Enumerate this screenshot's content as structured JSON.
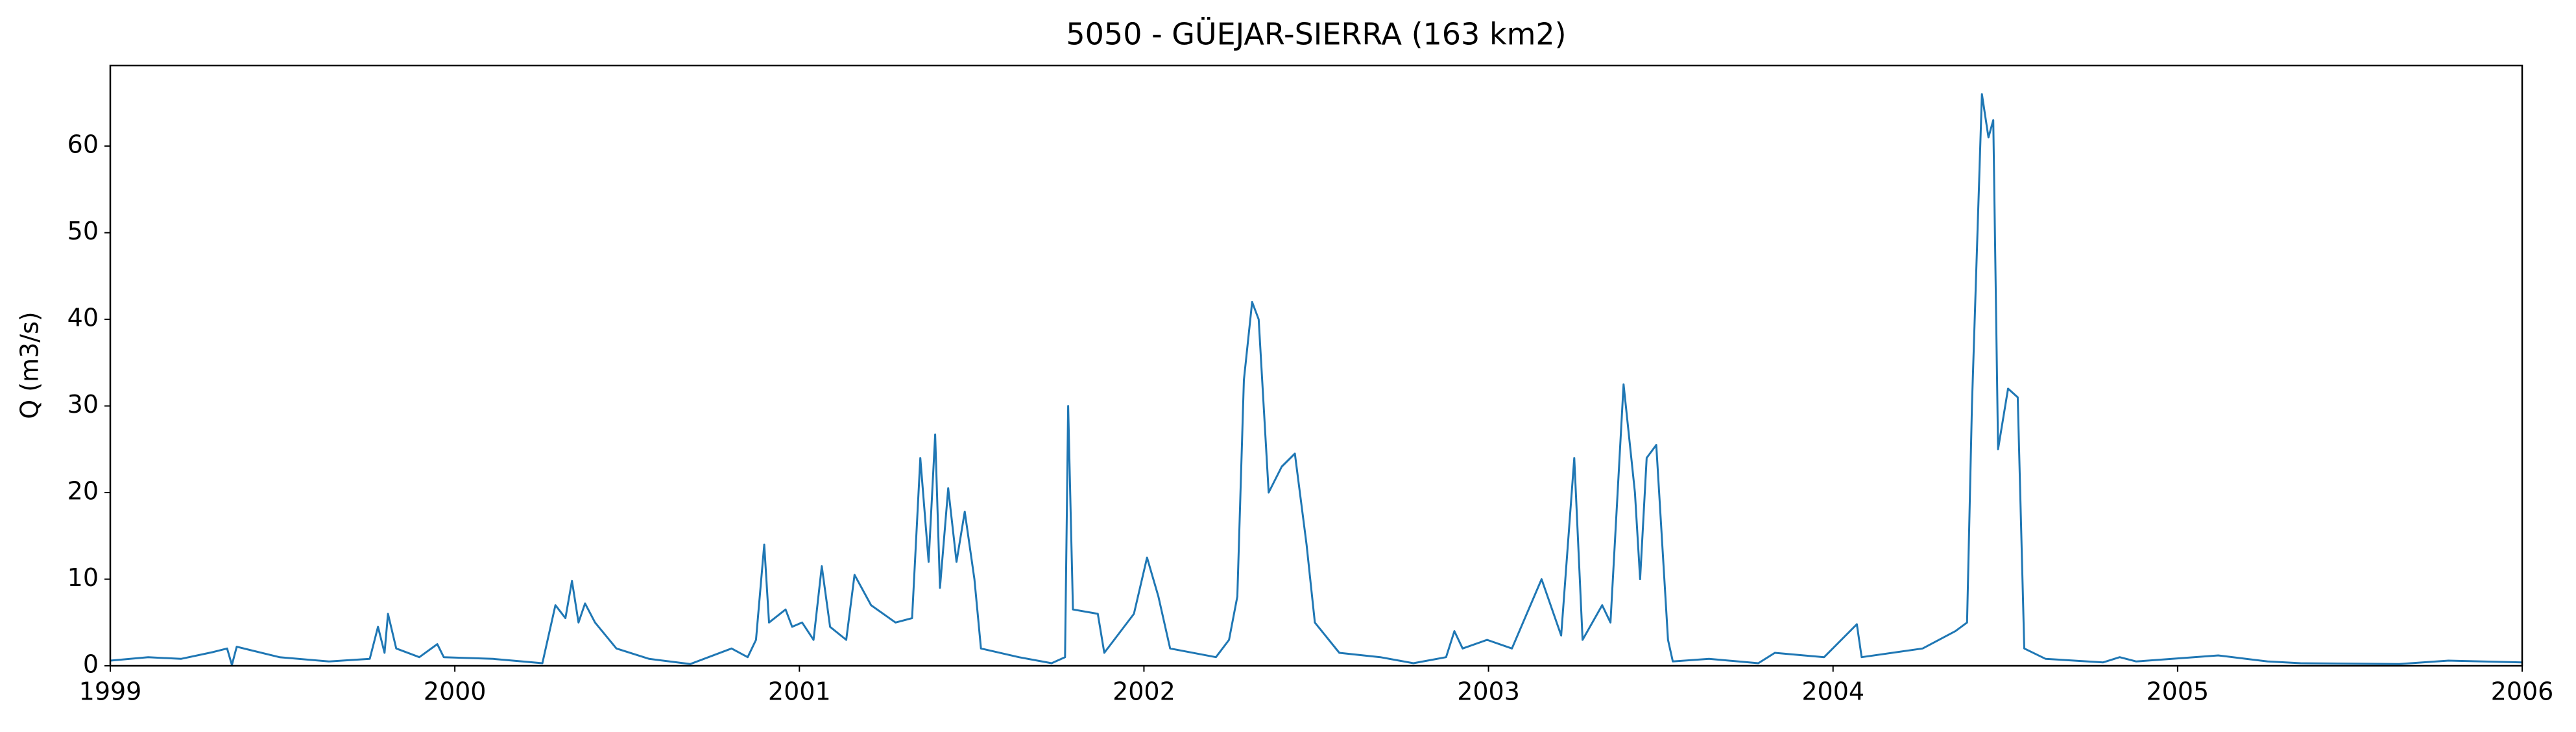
{
  "chart_data": {
    "type": "line",
    "title": "5050 - GÜEJAR-SIERRA (163 km2)",
    "y_label": "Q (m3/s)",
    "x": [
      1999.0,
      1999.11,
      1999.205,
      1999.3,
      1999.339,
      1999.353,
      1999.367,
      1999.491,
      1999.634,
      1999.753,
      1999.777,
      1999.796,
      1999.806,
      1999.83,
      1999.897,
      1999.949,
      1999.968,
      2000.111,
      2000.254,
      2000.292,
      2000.321,
      2000.34,
      2000.359,
      2000.378,
      2000.407,
      2000.469,
      2000.564,
      2000.683,
      2000.803,
      2000.85,
      2000.874,
      2000.898,
      2000.912,
      2000.96,
      2000.979,
      2001.008,
      2001.041,
      2001.065,
      2001.089,
      2001.136,
      2001.16,
      2001.208,
      2001.279,
      2001.327,
      2001.351,
      2001.375,
      2001.394,
      2001.408,
      2001.432,
      2001.456,
      2001.48,
      2001.508,
      2001.527,
      2001.637,
      2001.732,
      2001.771,
      2001.78,
      2001.794,
      2001.866,
      2001.885,
      2001.971,
      2002.009,
      2002.042,
      2002.076,
      2002.209,
      2002.247,
      2002.271,
      2002.29,
      2002.314,
      2002.333,
      2002.362,
      2002.4,
      2002.438,
      2002.472,
      2002.496,
      2002.567,
      2002.686,
      2002.782,
      2002.877,
      2002.901,
      2002.925,
      2002.996,
      2003.068,
      2003.154,
      2003.211,
      2003.249,
      2003.273,
      2003.33,
      2003.354,
      2003.392,
      2003.425,
      2003.44,
      2003.459,
      2003.487,
      2003.521,
      2003.535,
      2003.64,
      2003.783,
      2003.831,
      2003.974,
      2004.069,
      2004.083,
      2004.26,
      2004.355,
      2004.389,
      2004.403,
      2004.432,
      2004.451,
      2004.465,
      2004.479,
      2004.508,
      2004.536,
      2004.555,
      2004.617,
      2004.784,
      2004.832,
      2004.88,
      2005.118,
      2005.261,
      2005.357,
      2005.643,
      2005.786,
      2006.0
    ],
    "series": [
      {
        "name": "Q",
        "color": "#1f77b4",
        "values": [
          0.6,
          1.0,
          0.8,
          1.6,
          2.0,
          0.1,
          2.2,
          1.0,
          0.5,
          0.8,
          4.5,
          1.5,
          6.0,
          2.0,
          1.0,
          2.5,
          1.0,
          0.8,
          0.3,
          7.0,
          5.5,
          9.8,
          5.0,
          7.2,
          5.0,
          2.0,
          0.8,
          0.2,
          2.0,
          1.0,
          3.0,
          14.0,
          5.0,
          6.5,
          4.5,
          5.0,
          3.0,
          11.5,
          4.5,
          3.0,
          10.5,
          7.0,
          5.0,
          5.5,
          24.0,
          12.0,
          26.7,
          9.0,
          20.5,
          12.0,
          17.8,
          10.0,
          2.0,
          1.0,
          0.3,
          1.0,
          30.0,
          6.5,
          6.0,
          1.5,
          6.0,
          12.5,
          8.0,
          2.0,
          1.0,
          3.0,
          8.0,
          33.0,
          42.0,
          40.0,
          20.0,
          23.0,
          24.5,
          14.0,
          5.0,
          1.5,
          1.0,
          0.3,
          1.0,
          4.0,
          2.0,
          3.0,
          2.0,
          10.0,
          3.5,
          24.0,
          3.0,
          7.0,
          5.0,
          32.5,
          20.0,
          10.0,
          24.0,
          25.5,
          3.0,
          0.5,
          0.8,
          0.3,
          1.5,
          1.0,
          4.8,
          1.0,
          2.0,
          4.0,
          5.0,
          30.0,
          66.0,
          61.0,
          63.0,
          25.0,
          32.0,
          31.0,
          2.0,
          0.8,
          0.4,
          1.0,
          0.5,
          1.2,
          0.5,
          0.3,
          0.2,
          0.6,
          0.4
        ]
      }
    ],
    "xlim": [
      1999,
      2006
    ],
    "xticks": [
      1999,
      2000,
      2001,
      2002,
      2003,
      2004,
      2005,
      2006
    ],
    "ylim": [
      0,
      69.3
    ],
    "yticks": [
      0,
      10,
      20,
      30,
      40,
      50,
      60
    ]
  }
}
